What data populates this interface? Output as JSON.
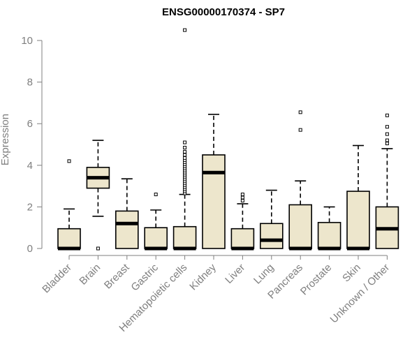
{
  "chart_data": {
    "type": "boxplot",
    "title": "ENSG00000170374 - SP7",
    "xlabel": "",
    "ylabel": "Expression",
    "ylim": [
      0,
      10.5
    ],
    "yticks": [
      0,
      2,
      4,
      6,
      8,
      10
    ],
    "grid": false,
    "colors": {
      "box_fill": "#ede6cc",
      "box_stroke": "#000000",
      "median": "#000000",
      "axis": "#7f7f7f"
    },
    "categories": [
      "Bladder",
      "Brain",
      "Breast",
      "Gastric",
      "Hematopoietic cells",
      "Kidney",
      "Liver",
      "Lung",
      "Pancreas",
      "Prostate",
      "Skin",
      "Unknown / Other"
    ],
    "series": [
      {
        "category": "Bladder",
        "q1": 0,
        "median": 0,
        "q3": 0.95,
        "whisker_low": 0,
        "whisker_high": 1.9,
        "outliers": [
          4.2
        ]
      },
      {
        "category": "Brain",
        "q1": 2.9,
        "median": 3.4,
        "q3": 3.9,
        "whisker_low": 1.55,
        "whisker_high": 5.2,
        "outliers": [
          0
        ]
      },
      {
        "category": "Breast",
        "q1": 0,
        "median": 1.2,
        "q3": 1.8,
        "whisker_low": 0,
        "whisker_high": 3.35,
        "outliers": []
      },
      {
        "category": "Gastric",
        "q1": 0,
        "median": 0,
        "q3": 1.0,
        "whisker_low": 0,
        "whisker_high": 1.85,
        "outliers": [
          2.6
        ]
      },
      {
        "category": "Hematopoietic cells",
        "q1": 0,
        "median": 0,
        "q3": 1.05,
        "whisker_low": 0,
        "whisker_high": 2.6,
        "outliers": [
          2.65,
          2.75,
          2.85,
          2.95,
          3.05,
          3.15,
          3.25,
          3.35,
          3.45,
          3.55,
          3.65,
          3.75,
          3.85,
          3.95,
          4.05,
          4.15,
          4.25,
          4.35,
          4.5,
          4.65,
          4.85,
          5.1,
          10.5
        ]
      },
      {
        "category": "Kidney",
        "q1": 0,
        "median": 3.65,
        "q3": 4.5,
        "whisker_low": 0,
        "whisker_high": 6.45,
        "outliers": []
      },
      {
        "category": "Liver",
        "q1": 0,
        "median": 0,
        "q3": 0.95,
        "whisker_low": 0,
        "whisker_high": 2.15,
        "outliers": [
          2.3,
          2.45,
          2.6
        ]
      },
      {
        "category": "Lung",
        "q1": 0,
        "median": 0.4,
        "q3": 1.2,
        "whisker_low": 0,
        "whisker_high": 2.8,
        "outliers": []
      },
      {
        "category": "Pancreas",
        "q1": 0,
        "median": 0,
        "q3": 2.1,
        "whisker_low": 0,
        "whisker_high": 3.25,
        "outliers": [
          5.7,
          6.55
        ]
      },
      {
        "category": "Prostate",
        "q1": 0,
        "median": 0,
        "q3": 1.25,
        "whisker_low": 0,
        "whisker_high": 2.0,
        "outliers": []
      },
      {
        "category": "Skin",
        "q1": 0,
        "median": 0,
        "q3": 2.75,
        "whisker_low": 0,
        "whisker_high": 4.95,
        "outliers": []
      },
      {
        "category": "Unknown / Other",
        "q1": 0,
        "median": 0.95,
        "q3": 2.0,
        "whisker_low": 0,
        "whisker_high": 4.8,
        "outliers": [
          5.05,
          5.2,
          5.5,
          5.85,
          6.4
        ]
      }
    ]
  }
}
